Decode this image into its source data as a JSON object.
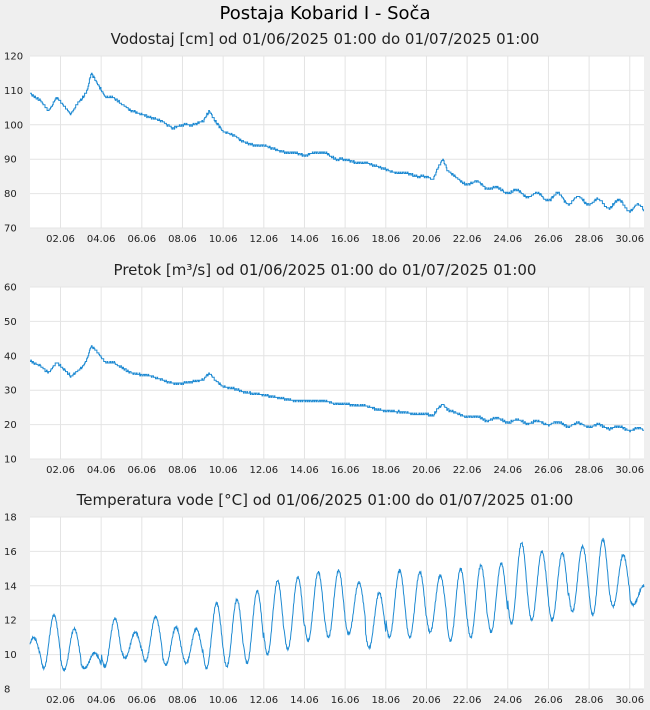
{
  "station_title": "Postaja Kobarid I - Soča",
  "chart_data": [
    {
      "type": "line",
      "title": "Vodostaj [cm] od 01/06/2025 01:00 do 01/07/2025 01:00",
      "xlabel": "",
      "ylabel": "",
      "xlim_days": [
        0.5,
        30.7
      ],
      "ylim": [
        70,
        120
      ],
      "yticks": [
        70,
        80,
        90,
        100,
        110,
        120
      ],
      "xticks": [
        "02.06",
        "04.06",
        "06.06",
        "08.06",
        "10.06",
        "12.06",
        "14.06",
        "16.06",
        "18.06",
        "20.06",
        "22.06",
        "24.06",
        "26.06",
        "28.06",
        "30.06"
      ],
      "grid": true,
      "color": "#1e8ad2",
      "x": [
        0.5,
        1.0,
        1.4,
        1.8,
        2.1,
        2.5,
        2.8,
        3.1,
        3.3,
        3.5,
        3.8,
        4.2,
        4.6,
        5.0,
        5.5,
        6.0,
        6.5,
        7.0,
        7.5,
        8.0,
        8.5,
        9.0,
        9.3,
        9.6,
        10.0,
        10.5,
        11.0,
        11.5,
        12.0,
        12.5,
        13.0,
        13.5,
        14.0,
        14.5,
        15.0,
        15.5,
        16.0,
        16.5,
        17.0,
        17.5,
        18.0,
        18.5,
        19.0,
        19.5,
        20.0,
        20.3,
        20.6,
        20.8,
        21.0,
        21.5,
        22.0,
        22.5,
        23.0,
        23.5,
        24.0,
        24.5,
        25.0,
        25.5,
        26.0,
        26.5,
        27.0,
        27.5,
        28.0,
        28.5,
        29.0,
        29.5,
        30.0,
        30.3,
        30.7
      ],
      "y": [
        109,
        107,
        104,
        108,
        106,
        103,
        106,
        108,
        110,
        115,
        112,
        108,
        108,
        106,
        104,
        103,
        102,
        101,
        99,
        100,
        100,
        101,
        104,
        101,
        98,
        97,
        95,
        94,
        94,
        93,
        92,
        92,
        91,
        92,
        92,
        90,
        90,
        89,
        89,
        88,
        87,
        86,
        86,
        85,
        85,
        84,
        88,
        90,
        87,
        84,
        83,
        83,
        82,
        81,
        81,
        80,
        80,
        79,
        79,
        79,
        78,
        78,
        78,
        77,
        77,
        77,
        76,
        76,
        75
      ],
      "ripple": [
        0,
        0,
        0,
        0,
        0,
        0,
        0,
        0,
        0,
        0,
        0,
        0,
        0,
        0,
        0,
        0,
        0,
        0,
        0,
        0,
        0,
        0,
        0,
        0,
        0,
        0,
        0,
        0,
        0,
        0,
        0,
        0,
        0,
        0,
        0,
        0,
        0,
        0,
        0,
        0,
        0,
        0,
        0,
        0,
        0,
        0,
        0,
        0,
        0,
        0.5,
        0.5,
        0.6,
        0.7,
        0.8,
        0.9,
        1,
        1,
        1.1,
        1.1,
        1.2,
        1.2,
        1.2,
        1.2,
        1.2,
        1.2,
        1.2,
        1.2,
        1.2,
        1.2
      ]
    },
    {
      "type": "line",
      "title": "Pretok [m³/s] od 01/06/2025 01:00 do 01/07/2025 01:00",
      "xlabel": "",
      "ylabel": "",
      "xlim_days": [
        0.5,
        30.7
      ],
      "ylim": [
        10,
        60
      ],
      "yticks": [
        10,
        20,
        30,
        40,
        50,
        60
      ],
      "xticks": [
        "02.06",
        "04.06",
        "06.06",
        "08.06",
        "10.06",
        "12.06",
        "14.06",
        "16.06",
        "18.06",
        "20.06",
        "22.06",
        "24.06",
        "26.06",
        "28.06",
        "30.06"
      ],
      "grid": true,
      "color": "#1e8ad2",
      "x": [
        0.5,
        1.0,
        1.4,
        1.8,
        2.1,
        2.5,
        2.8,
        3.1,
        3.3,
        3.5,
        3.8,
        4.2,
        4.6,
        5.0,
        5.5,
        6.0,
        6.5,
        7.0,
        7.5,
        8.0,
        8.5,
        9.0,
        9.3,
        9.6,
        10.0,
        10.5,
        11.0,
        11.5,
        12.0,
        12.5,
        13.0,
        13.5,
        14.0,
        14.5,
        15.0,
        15.5,
        16.0,
        16.5,
        17.0,
        17.5,
        18.0,
        18.5,
        19.0,
        19.5,
        20.0,
        20.3,
        20.6,
        20.8,
        21.0,
        21.5,
        22.0,
        22.5,
        23.0,
        23.5,
        24.0,
        24.5,
        25.0,
        25.5,
        26.0,
        26.5,
        27.0,
        27.5,
        28.0,
        28.5,
        29.0,
        29.5,
        30.0,
        30.3,
        30.7
      ],
      "y": [
        38.5,
        37,
        35,
        38,
        36.5,
        34,
        35.5,
        37,
        39,
        43,
        41,
        38,
        38,
        36.5,
        35,
        34.5,
        34,
        33,
        32,
        32,
        32.5,
        33,
        35,
        33,
        31,
        30.5,
        29.5,
        29,
        28.5,
        28,
        27.5,
        27,
        27,
        27,
        27,
        26,
        26,
        25.5,
        25.5,
        24.5,
        24,
        23.8,
        23.5,
        23,
        23,
        22.5,
        25,
        26,
        24.5,
        23,
        22.5,
        22,
        21.5,
        21.5,
        21,
        21,
        20.8,
        20.5,
        20.5,
        20.3,
        20,
        20,
        19.8,
        19.5,
        19.3,
        19,
        18.8,
        18.6,
        18.3
      ],
      "ripple": [
        0,
        0,
        0,
        0,
        0,
        0,
        0,
        0,
        0,
        0,
        0,
        0,
        0,
        0,
        0,
        0,
        0,
        0,
        0,
        0,
        0,
        0,
        0,
        0,
        0,
        0,
        0,
        0,
        0,
        0,
        0,
        0,
        0,
        0,
        0,
        0,
        0,
        0,
        0,
        0,
        0,
        0,
        0,
        0,
        0,
        0,
        0,
        0,
        0,
        0.3,
        0.3,
        0.35,
        0.4,
        0.45,
        0.5,
        0.5,
        0.5,
        0.5,
        0.55,
        0.55,
        0.55,
        0.55,
        0.55,
        0.55,
        0.55,
        0.55,
        0.55,
        0.55,
        0.55
      ]
    },
    {
      "type": "line",
      "title": "Temperatura vode [°C] od 01/06/2025 01:00 do 01/07/2025 01:00",
      "xlabel": "",
      "ylabel": "",
      "xlim_days": [
        0.5,
        30.7
      ],
      "ylim": [
        8,
        18
      ],
      "yticks": [
        8,
        10,
        12,
        14,
        16,
        18
      ],
      "xticks": [
        "02.06",
        "04.06",
        "06.06",
        "08.06",
        "10.06",
        "12.06",
        "14.06",
        "16.06",
        "18.06",
        "20.06",
        "22.06",
        "24.06",
        "26.06",
        "28.06",
        "30.06"
      ],
      "grid": true,
      "color": "#1e8ad2",
      "daily_min": [
        9.6,
        9.2,
        9.1,
        9.2,
        9.3,
        9.8,
        9.6,
        9.4,
        9.5,
        9.2,
        9.3,
        9.5,
        10.0,
        10.3,
        10.8,
        11.0,
        11.2,
        10.4,
        11.0,
        11.0,
        11.3,
        10.8,
        11.0,
        11.3,
        11.8,
        12.0,
        12.0,
        12.5,
        12.3,
        12.8,
        12.9
      ],
      "daily_max": [
        11.0,
        12.3,
        11.5,
        10.1,
        12.1,
        11.3,
        12.2,
        11.6,
        11.5,
        13.0,
        13.2,
        13.7,
        14.3,
        14.5,
        14.8,
        14.9,
        14.2,
        13.6,
        14.9,
        14.8,
        14.6,
        15.0,
        15.2,
        15.3,
        16.5,
        16.0,
        15.9,
        16.3,
        16.7,
        15.8,
        14.0
      ]
    }
  ]
}
